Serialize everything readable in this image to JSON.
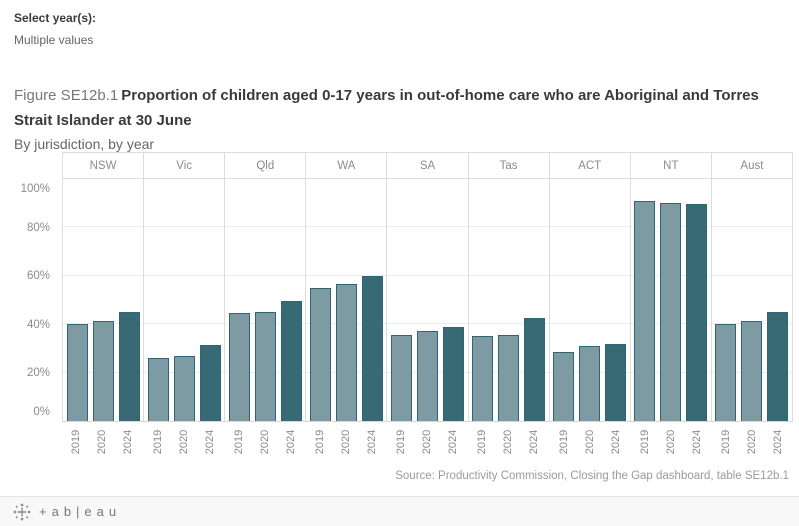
{
  "filter": {
    "label": "Select year(s):",
    "value": "Multiple values"
  },
  "title": {
    "figure_number": "Figure SE12b.1",
    "main": "Proportion of children aged 0-17 years in out-of-home care who are Aboriginal and Torres Strait Islander at 30 June",
    "subtitle": "By jurisdiction, by year"
  },
  "source": "Source: Productivity Commission, Closing the Gap dashboard, table SE12b.1",
  "footer": {
    "tableau_wordmark": "+ab|eau"
  },
  "chart_data": {
    "type": "bar",
    "title": "Figure SE12b.1 Proportion of children aged 0-17 years in out-of-home care who are Aboriginal and Torres Strait Islander at 30 June",
    "subtitle": "By jurisdiction, by year",
    "categories": [
      "NSW",
      "Vic",
      "Qld",
      "WA",
      "SA",
      "Tas",
      "ACT",
      "NT",
      "Aust"
    ],
    "series": [
      {
        "name": "2019",
        "values": [
          40,
          26,
          44.5,
          55,
          35.5,
          35,
          28.5,
          91,
          40
        ]
      },
      {
        "name": "2020",
        "values": [
          41.5,
          27,
          45,
          56.5,
          37,
          35.5,
          31,
          90,
          41.5
        ]
      },
      {
        "name": "2024",
        "values": [
          45,
          31.5,
          49.5,
          60,
          39,
          42.5,
          32,
          89.5,
          45
        ]
      }
    ],
    "unit": "percent",
    "ylim": [
      0,
      100
    ],
    "y_ticks": [
      "0%",
      "20%",
      "40%",
      "60%",
      "80%",
      "100%"
    ],
    "grid": true,
    "legend": "none",
    "colors": {
      "2019": "#7e9aa2",
      "2020": "#7e9aa2",
      "2024": "#386a76",
      "bar_border": "#2e6577"
    },
    "source": "Source: Productivity Commission, Closing the Gap dashboard, table SE12b.1"
  }
}
